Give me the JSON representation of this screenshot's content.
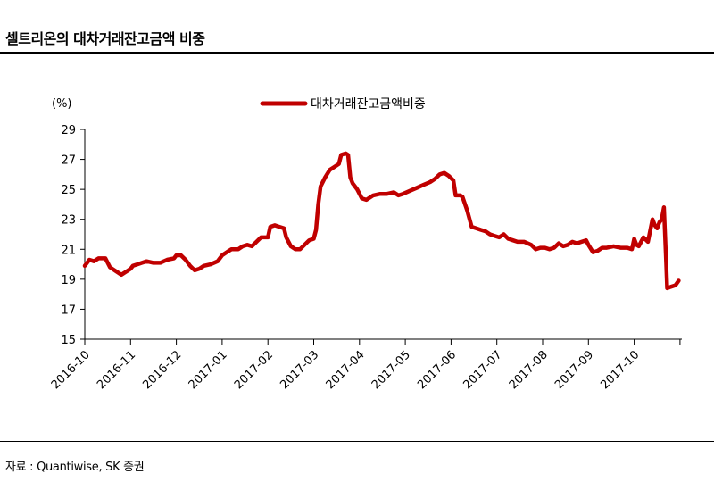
{
  "header": {
    "title": "셀트리온의 대차거래잔고금액 비중"
  },
  "footer": {
    "source": "자료 : Quantiwise, SK 증권"
  },
  "chart_data": {
    "type": "line",
    "ylabel": "(%)",
    "ylim": [
      15,
      29
    ],
    "yticks": [
      15,
      17,
      19,
      21,
      23,
      25,
      27,
      29
    ],
    "categories": [
      "2016-10",
      "2016-11",
      "2016-12",
      "2017-01",
      "2017-02",
      "2017-03",
      "2017-04",
      "2017-05",
      "2017-06",
      "2017-07",
      "2017-08",
      "2017-09",
      "2017-10"
    ],
    "legend": "top-center",
    "color": "#c00000",
    "series": [
      {
        "name": "대차거래잔고금액비중",
        "points": [
          [
            0.0,
            19.9
          ],
          [
            0.05,
            20.1
          ],
          [
            0.1,
            20.3
          ],
          [
            0.2,
            20.2
          ],
          [
            0.3,
            20.4
          ],
          [
            0.45,
            20.4
          ],
          [
            0.55,
            19.8
          ],
          [
            0.7,
            19.5
          ],
          [
            0.8,
            19.3
          ],
          [
            0.9,
            19.5
          ],
          [
            1.0,
            19.7
          ],
          [
            1.05,
            19.9
          ],
          [
            1.15,
            20.0
          ],
          [
            1.25,
            20.1
          ],
          [
            1.35,
            20.2
          ],
          [
            1.5,
            20.1
          ],
          [
            1.65,
            20.1
          ],
          [
            1.8,
            20.3
          ],
          [
            1.95,
            20.4
          ],
          [
            2.0,
            20.6
          ],
          [
            2.1,
            20.6
          ],
          [
            2.2,
            20.3
          ],
          [
            2.3,
            19.9
          ],
          [
            2.4,
            19.6
          ],
          [
            2.5,
            19.7
          ],
          [
            2.6,
            19.9
          ],
          [
            2.75,
            20.0
          ],
          [
            2.9,
            20.2
          ],
          [
            3.0,
            20.6
          ],
          [
            3.1,
            20.8
          ],
          [
            3.2,
            21.0
          ],
          [
            3.35,
            21.0
          ],
          [
            3.45,
            21.2
          ],
          [
            3.55,
            21.3
          ],
          [
            3.65,
            21.2
          ],
          [
            3.75,
            21.5
          ],
          [
            3.85,
            21.8
          ],
          [
            4.0,
            21.8
          ],
          [
            4.05,
            22.5
          ],
          [
            4.15,
            22.6
          ],
          [
            4.25,
            22.5
          ],
          [
            4.35,
            22.4
          ],
          [
            4.4,
            21.8
          ],
          [
            4.5,
            21.2
          ],
          [
            4.6,
            21.0
          ],
          [
            4.7,
            21.0
          ],
          [
            4.8,
            21.3
          ],
          [
            4.9,
            21.6
          ],
          [
            5.0,
            21.7
          ],
          [
            5.05,
            22.3
          ],
          [
            5.1,
            24.0
          ],
          [
            5.15,
            25.2
          ],
          [
            5.25,
            25.8
          ],
          [
            5.35,
            26.3
          ],
          [
            5.45,
            26.5
          ],
          [
            5.55,
            26.7
          ],
          [
            5.6,
            27.3
          ],
          [
            5.7,
            27.4
          ],
          [
            5.75,
            27.3
          ],
          [
            5.8,
            25.8
          ],
          [
            5.85,
            25.4
          ],
          [
            5.95,
            25.0
          ],
          [
            6.05,
            24.4
          ],
          [
            6.15,
            24.3
          ],
          [
            6.3,
            24.6
          ],
          [
            6.45,
            24.7
          ],
          [
            6.6,
            24.7
          ],
          [
            6.75,
            24.8
          ],
          [
            6.85,
            24.6
          ],
          [
            6.95,
            24.7
          ],
          [
            7.1,
            24.9
          ],
          [
            7.25,
            25.1
          ],
          [
            7.4,
            25.3
          ],
          [
            7.55,
            25.5
          ],
          [
            7.65,
            25.7
          ],
          [
            7.75,
            26.0
          ],
          [
            7.85,
            26.1
          ],
          [
            7.95,
            25.9
          ],
          [
            8.05,
            25.6
          ],
          [
            8.1,
            24.6
          ],
          [
            8.2,
            24.6
          ],
          [
            8.25,
            24.5
          ],
          [
            8.35,
            23.6
          ],
          [
            8.45,
            22.5
          ],
          [
            8.55,
            22.4
          ],
          [
            8.65,
            22.3
          ],
          [
            8.75,
            22.2
          ],
          [
            8.85,
            22.0
          ],
          [
            8.95,
            21.9
          ],
          [
            9.05,
            21.8
          ],
          [
            9.15,
            22.0
          ],
          [
            9.25,
            21.7
          ],
          [
            9.35,
            21.6
          ],
          [
            9.45,
            21.5
          ],
          [
            9.6,
            21.5
          ],
          [
            9.75,
            21.3
          ],
          [
            9.85,
            21.0
          ],
          [
            9.95,
            21.1
          ],
          [
            10.05,
            21.1
          ],
          [
            10.15,
            21.0
          ],
          [
            10.25,
            21.1
          ],
          [
            10.35,
            21.4
          ],
          [
            10.45,
            21.2
          ],
          [
            10.55,
            21.3
          ],
          [
            10.65,
            21.5
          ],
          [
            10.75,
            21.4
          ],
          [
            10.85,
            21.5
          ],
          [
            10.95,
            21.6
          ],
          [
            11.0,
            21.3
          ],
          [
            11.1,
            20.8
          ],
          [
            11.2,
            20.9
          ],
          [
            11.3,
            21.1
          ],
          [
            11.4,
            21.1
          ],
          [
            11.55,
            21.2
          ],
          [
            11.7,
            21.1
          ],
          [
            11.85,
            21.1
          ],
          [
            11.95,
            21.0
          ],
          [
            12.0,
            21.7
          ],
          [
            12.05,
            21.3
          ],
          [
            12.1,
            21.2
          ],
          [
            12.2,
            21.8
          ],
          [
            12.3,
            21.5
          ],
          [
            12.4,
            23.0
          ],
          [
            12.45,
            22.6
          ],
          [
            12.5,
            22.4
          ],
          [
            12.55,
            22.8
          ],
          [
            12.6,
            23.0
          ],
          [
            12.65,
            23.8
          ],
          [
            12.7,
            20.0
          ],
          [
            12.72,
            18.4
          ],
          [
            12.8,
            18.5
          ],
          [
            12.9,
            18.6
          ],
          [
            12.97,
            18.9
          ]
        ]
      }
    ]
  }
}
